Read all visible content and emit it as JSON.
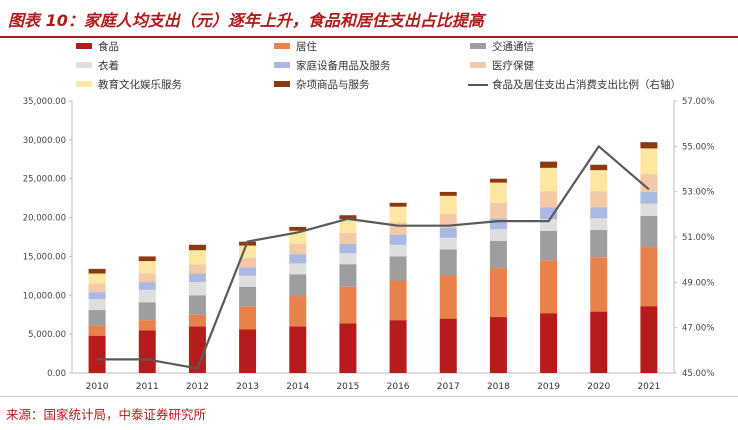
{
  "title": "图表 10：家庭人均支出（元）逐年上升，食品和居住支出占比提高",
  "source": "来源：国家统计局，中泰证券研究所",
  "chart_data": {
    "type": "bar",
    "stacked": true,
    "categories": [
      "2010",
      "2011",
      "2012",
      "2013",
      "2014",
      "2015",
      "2016",
      "2017",
      "2018",
      "2019",
      "2020",
      "2021"
    ],
    "y_left": {
      "min": 0,
      "max": 35000,
      "step": 5000,
      "tick_labels": [
        "0.00",
        "5,000.00",
        "10,000.00",
        "15,000.00",
        "20,000.00",
        "25,000.00",
        "30,000.00",
        "35,000.00"
      ]
    },
    "y_right": {
      "min": 45,
      "max": 57,
      "step": 2,
      "tick_labels": [
        "45.00%",
        "47.00%",
        "49.00%",
        "51.00%",
        "53.00%",
        "55.00%",
        "57.00%"
      ]
    },
    "series": [
      {
        "name": "食品",
        "color": "#b71c1c",
        "values": [
          4800,
          5500,
          6000,
          5600,
          6000,
          6400,
          6800,
          7000,
          7200,
          7700,
          7900,
          8600
        ]
      },
      {
        "name": "居住",
        "color": "#e8814a",
        "values": [
          1300,
          1300,
          1500,
          3000,
          3900,
          4700,
          5100,
          5600,
          6300,
          6800,
          7000,
          7600
        ]
      },
      {
        "name": "交通通信",
        "color": "#9e9e9e",
        "values": [
          2000,
          2300,
          2500,
          2500,
          2800,
          2900,
          3100,
          3300,
          3500,
          3800,
          3500,
          4000
        ]
      },
      {
        "name": "衣着",
        "color": "#dedede",
        "values": [
          1400,
          1600,
          1700,
          1400,
          1400,
          1400,
          1500,
          1500,
          1500,
          1500,
          1500,
          1600
        ]
      },
      {
        "name": "家庭设备用品及服务",
        "color": "#aab8e2",
        "values": [
          900,
          1000,
          1100,
          1100,
          1200,
          1200,
          1300,
          1300,
          1400,
          1500,
          1400,
          1500
        ]
      },
      {
        "name": "医疗保健",
        "color": "#f4c9a8",
        "values": [
          1100,
          1100,
          1200,
          1200,
          1300,
          1400,
          1600,
          1800,
          2000,
          2100,
          2100,
          2300
        ]
      },
      {
        "name": "教育文化娱乐服务",
        "color": "#fce6a0",
        "values": [
          1300,
          1600,
          1800,
          1600,
          1700,
          1800,
          2000,
          2300,
          2600,
          3000,
          2700,
          3300
        ]
      },
      {
        "name": "杂项商品与服务",
        "color": "#8b3a12",
        "values": [
          600,
          600,
          700,
          500,
          500,
          500,
          500,
          500,
          500,
          800,
          700,
          800
        ]
      }
    ],
    "line": {
      "name": "食品及居住支出占消费支出比例（右轴）",
      "color": "#5a5a5a",
      "values": [
        45.6,
        45.6,
        45.2,
        50.8,
        51.2,
        51.8,
        51.5,
        51.5,
        51.7,
        51.7,
        55.0,
        53.1
      ]
    },
    "legend_position": "top",
    "grid": false
  }
}
